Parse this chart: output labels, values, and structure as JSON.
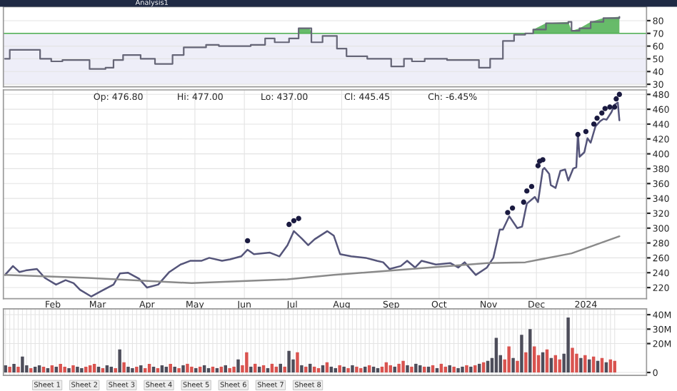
{
  "chart_data": [
    {
      "type": "step",
      "annotations": [
        "Analysis1"
      ],
      "xlim": [
        "2023-01-01",
        "2024-02-08"
      ],
      "ylim": [
        28,
        91
      ],
      "yticks": [
        30,
        40,
        50,
        60,
        70,
        80
      ],
      "grid": true,
      "tick_labels": "y",
      "bands": [
        {
          "axis": "y",
          "from": 30,
          "to": 70,
          "color": "#eeeef8"
        }
      ],
      "ref_lines": [
        {
          "axis": "y",
          "value": 70,
          "color": "#4caf50"
        }
      ],
      "series": [
        {
          "color": "#666677",
          "x": [
            "2023-01-02",
            "2023-01-05",
            "2023-01-16",
            "2023-01-24",
            "2023-01-31",
            "2023-02-07",
            "2023-02-18",
            "2023-02-24",
            "2023-03-06",
            "2023-03-11",
            "2023-03-17",
            "2023-03-28",
            "2023-04-06",
            "2023-04-15",
            "2023-04-17",
            "2023-04-24",
            "2023-05-08",
            "2023-05-16",
            "2023-06-05",
            "2023-06-14",
            "2023-06-20",
            "2023-06-29",
            "2023-07-05",
            "2023-07-08",
            "2023-07-12",
            "2023-07-13",
            "2023-07-20",
            "2023-07-26",
            "2023-07-29",
            "2023-08-04",
            "2023-08-17",
            "2023-09-01",
            "2023-09-09",
            "2023-09-14",
            "2023-09-22",
            "2023-10-06",
            "2023-10-26",
            "2023-11-02",
            "2023-11-10",
            "2023-11-17",
            "2023-11-24",
            "2023-11-29",
            "2023-12-07",
            "2023-12-21",
            "2023-12-23",
            "2023-12-28",
            "2024-01-04",
            "2024-01-12",
            "2024-01-22"
          ],
          "values": [
            50,
            57,
            57,
            50,
            48,
            49,
            49,
            42,
            43,
            49,
            53,
            50,
            46,
            46,
            53,
            59,
            61,
            60,
            61,
            66,
            63,
            66,
            74,
            74,
            74,
            63,
            68,
            68,
            58,
            52,
            50,
            44,
            50,
            48,
            50,
            49,
            43,
            50,
            64,
            69,
            70,
            73,
            78,
            79,
            72,
            74,
            79,
            82,
            83
          ],
          "lower": [
            null,
            null,
            null,
            null,
            null,
            null,
            null,
            null,
            null,
            null,
            null,
            null,
            null,
            null,
            null,
            null,
            null,
            null,
            null,
            null,
            null,
            null,
            70,
            70,
            70,
            70,
            null,
            null,
            null,
            null,
            null,
            null,
            null,
            null,
            null,
            null,
            null,
            null,
            null,
            null,
            null,
            70,
            70,
            70,
            70,
            70,
            70,
            70,
            70
          ],
          "upper": [
            null,
            null,
            null,
            null,
            null,
            null,
            null,
            null,
            null,
            null,
            null,
            null,
            null,
            null,
            null,
            null,
            null,
            null,
            null,
            null,
            null,
            null,
            74,
            74,
            74,
            70,
            null,
            null,
            null,
            null,
            null,
            null,
            null,
            null,
            null,
            null,
            null,
            null,
            null,
            null,
            null,
            73,
            78,
            79,
            72,
            74,
            79,
            82,
            83
          ]
        }
      ]
    },
    {
      "type": "line",
      "annotations": [
        "Op: 476.80",
        "Hi: 477.00",
        "Lo: 437.00",
        "Cl: 445.45",
        "Ch: -6.45%"
      ],
      "xlim": [
        "2023-01-01",
        "2024-02-08"
      ],
      "xticks": [
        {
          "value": "2023-02-01",
          "label": "Feb"
        },
        {
          "value": "2023-03-01",
          "label": "Mar"
        },
        {
          "value": "2023-04-01",
          "label": "Apr"
        },
        {
          "value": "2023-05-01",
          "label": "May"
        },
        {
          "value": "2023-06-01",
          "label": "Jun"
        },
        {
          "value": "2023-07-01",
          "label": "Jul"
        },
        {
          "value": "2023-08-01",
          "label": "Aug"
        },
        {
          "value": "2023-09-01",
          "label": "Sep"
        },
        {
          "value": "2023-10-01",
          "label": "Oct"
        },
        {
          "value": "2023-11-01",
          "label": "Nov"
        },
        {
          "value": "2023-12-01",
          "label": "Dec"
        },
        {
          "value": "2024-01-01",
          "label": "2024"
        }
      ],
      "ylim": [
        205,
        486
      ],
      "yticks": [
        220,
        240,
        260,
        280,
        300,
        320,
        340,
        360,
        380,
        400,
        420,
        440,
        460,
        480
      ],
      "grid": true,
      "series": [
        {
          "color": "#55557a",
          "x": [
            "2023-01-02",
            "2023-01-07",
            "2023-01-11",
            "2023-01-15",
            "2023-01-22",
            "2023-01-27",
            "2023-02-03",
            "2023-02-09",
            "2023-02-14",
            "2023-02-18",
            "2023-02-25",
            "2023-03-04",
            "2023-03-11",
            "2023-03-15",
            "2023-03-20",
            "2023-03-27",
            "2023-04-01",
            "2023-04-08",
            "2023-04-15",
            "2023-04-22",
            "2023-04-28",
            "2023-05-05",
            "2023-05-10",
            "2023-05-18",
            "2023-05-23",
            "2023-05-30",
            "2023-06-03",
            "2023-06-07",
            "2023-06-17",
            "2023-06-23",
            "2023-06-28",
            "2023-07-02",
            "2023-07-07",
            "2023-07-11",
            "2023-07-15",
            "2023-07-23",
            "2023-07-27",
            "2023-07-31",
            "2023-08-07",
            "2023-08-16",
            "2023-08-23",
            "2023-08-27",
            "2023-08-31",
            "2023-09-07",
            "2023-09-11",
            "2023-09-16",
            "2023-09-20",
            "2023-09-29",
            "2023-10-08",
            "2023-10-13",
            "2023-10-17",
            "2023-10-24",
            "2023-10-31",
            "2023-11-04",
            "2023-11-08",
            "2023-11-10",
            "2023-11-14",
            "2023-11-19",
            "2023-11-22",
            "2023-11-25",
            "2023-11-30",
            "2023-12-02",
            "2023-12-05",
            "2023-12-06",
            "2023-12-09",
            "2023-12-10",
            "2023-12-13",
            "2023-12-16",
            "2023-12-19",
            "2023-12-21",
            "2023-12-24",
            "2023-12-26",
            "2023-12-27",
            "2023-12-28",
            "2023-12-31",
            "2024-01-02",
            "2024-01-04",
            "2024-01-07",
            "2024-01-10",
            "2024-01-12",
            "2024-01-14",
            "2024-01-17",
            "2024-01-19",
            "2024-01-21",
            "2024-01-22"
          ],
          "values": [
            237,
            249,
            241,
            243,
            245,
            233,
            224,
            230,
            226,
            217,
            208,
            216,
            224,
            239,
            240,
            232,
            220,
            224,
            241,
            251,
            256,
            256,
            260,
            256,
            258,
            262,
            271,
            265,
            267,
            262,
            277,
            296,
            286,
            277,
            285,
            296,
            290,
            265,
            262,
            260,
            256,
            254,
            245,
            249,
            256,
            247,
            256,
            251,
            253,
            247,
            254,
            237,
            247,
            260,
            298,
            298,
            316,
            300,
            302,
            333,
            342,
            335,
            379,
            381,
            373,
            358,
            354,
            377,
            379,
            364,
            380,
            382,
            428,
            396,
            402,
            421,
            415,
            437,
            444,
            447,
            446,
            456,
            466,
            469,
            445
          ]
        },
        {
          "color": "#8a8a8a",
          "x": [
            "2023-01-02",
            "2023-02-23",
            "2023-04-29",
            "2023-06-28",
            "2023-07-27",
            "2023-09-25",
            "2023-10-31",
            "2023-11-24",
            "2023-12-23",
            "2024-01-22"
          ],
          "values": [
            237,
            233,
            226,
            231,
            237,
            247,
            253,
            254,
            266,
            289
          ]
        },
        {
          "type": "scatter",
          "marker": "circle",
          "color": "#1a1a40",
          "x": [
            "2023-06-03",
            "2023-06-29",
            "2023-07-02",
            "2023-07-05",
            "2023-11-13",
            "2023-11-16",
            "2023-11-23",
            "2023-11-25",
            "2023-11-28",
            "2023-12-02",
            "2023-12-03",
            "2023-12-05",
            "2023-12-27",
            "2024-01-01",
            "2024-01-06",
            "2024-01-08",
            "2024-01-11",
            "2024-01-13",
            "2024-01-16",
            "2024-01-19",
            "2024-01-20",
            "2024-01-22"
          ],
          "values": [
            283,
            305,
            310,
            313,
            321,
            327,
            335,
            350,
            356,
            384,
            390,
            392,
            426,
            430,
            440,
            448,
            455,
            461,
            463,
            463,
            474,
            480
          ]
        }
      ]
    },
    {
      "type": "bar",
      "annotations": [
        "Sheet 1",
        "Sheet 2",
        "Sheet 3",
        "Sheet 4",
        "Sheet 5",
        "Sheet 6",
        "Sheet 7",
        "Sheet 8"
      ],
      "ylim": [
        -2,
        44
      ],
      "yticks": [
        {
          "value": 0,
          "label": "0"
        },
        {
          "value": 20,
          "label": "20M"
        },
        {
          "value": 30,
          "label": "30M"
        },
        {
          "value": 40,
          "label": "40M"
        }
      ],
      "grid": true,
      "tick_labels": "y",
      "categories": [
        null,
        null,
        null,
        null,
        null,
        null,
        null,
        null,
        null,
        null,
        null,
        null,
        null,
        null,
        null,
        null,
        null,
        null,
        null,
        null,
        null,
        null,
        null,
        null,
        null,
        null,
        null,
        null,
        null,
        null,
        null,
        null,
        null,
        null,
        null,
        null,
        null,
        null,
        null,
        null,
        null,
        null,
        null,
        null,
        null,
        null,
        null,
        null,
        null,
        null,
        null,
        null,
        null,
        null,
        null,
        null,
        null,
        null,
        null,
        null,
        null,
        null,
        null,
        null,
        null,
        null,
        null,
        null,
        null,
        null,
        null,
        null,
        null,
        null,
        null,
        null,
        null,
        null,
        null,
        null,
        null,
        null,
        null,
        null,
        null,
        null,
        null,
        null,
        null,
        null,
        null,
        null,
        null,
        null,
        null,
        null,
        null,
        null,
        null,
        null,
        null,
        null,
        null,
        null,
        null,
        null,
        null,
        null,
        null,
        null,
        null,
        null,
        null,
        null,
        null,
        null,
        null,
        null,
        null,
        null,
        null,
        null,
        null,
        null,
        null,
        null,
        null,
        null,
        null,
        null,
        null,
        null,
        null,
        null,
        null,
        null,
        null,
        null,
        null,
        null,
        null,
        null,
        null,
        null,
        null
      ],
      "values": [
        5,
        4,
        6,
        4,
        11,
        5,
        3,
        4,
        5,
        4,
        3,
        5,
        4,
        6,
        4,
        3,
        5,
        4,
        3,
        4,
        5,
        6,
        4,
        3,
        5,
        4,
        3,
        16,
        7,
        4,
        3,
        4,
        5,
        3,
        6,
        4,
        3,
        5,
        4,
        6,
        4,
        3,
        5,
        6,
        4,
        3,
        4,
        5,
        3,
        4,
        3,
        4,
        5,
        3,
        4,
        9,
        5,
        14,
        4,
        6,
        4,
        5,
        3,
        6,
        4,
        6,
        4,
        15,
        9,
        14,
        5,
        4,
        6,
        4,
        3,
        5,
        7,
        4,
        3,
        5,
        4,
        3,
        5,
        4,
        3,
        4,
        5,
        4,
        3,
        4,
        7,
        5,
        4,
        6,
        8,
        5,
        4,
        6,
        5,
        4,
        4,
        5,
        3,
        6,
        4,
        5,
        4,
        3,
        4,
        5,
        4,
        5,
        6,
        7,
        8,
        10,
        24,
        12,
        9,
        18,
        10,
        8,
        26,
        14,
        30,
        18,
        12,
        14,
        16,
        10,
        12,
        9,
        13,
        38,
        17,
        13,
        10,
        12,
        9,
        11,
        8,
        10,
        7,
        9,
        8
      ],
      "colors": [
        "#4d4d5a",
        "#d9534f",
        "#4d4d5a",
        "#d9534f",
        "#4d4d5a",
        "#4d4d5a",
        "#d9534f",
        "#4d4d5a",
        "#4d4d5a",
        "#d9534f",
        "#4d4d5a",
        "#d9534f",
        "#4d4d5a",
        "#d9534f",
        "#d9534f",
        "#4d4d5a",
        "#d9534f",
        "#4d4d5a",
        "#4d4d5a",
        "#d9534f",
        "#d9534f",
        "#d9534f",
        "#4d4d5a",
        "#d9534f",
        "#4d4d5a",
        "#4d4d5a",
        "#d9534f",
        "#4d4d5a",
        "#d9534f",
        "#4d4d5a",
        "#4d4d5a",
        "#d9534f",
        "#4d4d5a",
        "#d9534f",
        "#d9534f",
        "#4d4d5a",
        "#d9534f",
        "#4d4d5a",
        "#4d4d5a",
        "#d9534f",
        "#4d4d5a",
        "#d9534f",
        "#4d4d5a",
        "#d9534f",
        "#d9534f",
        "#4d4d5a",
        "#d9534f",
        "#4d4d5a",
        "#4d4d5a",
        "#d9534f",
        "#4d4d5a",
        "#d9534f",
        "#4d4d5a",
        "#d9534f",
        "#d9534f",
        "#4d4d5a",
        "#d9534f",
        "#d9534f",
        "#4d4d5a",
        "#d9534f",
        "#4d4d5a",
        "#d9534f",
        "#4d4d5a",
        "#d9534f",
        "#d9534f",
        "#4d4d5a",
        "#d9534f",
        "#4d4d5a",
        "#4d4d5a",
        "#d9534f",
        "#4d4d5a",
        "#d9534f",
        "#4d4d5a",
        "#d9534f",
        "#d9534f",
        "#4d4d5a",
        "#d9534f",
        "#4d4d5a",
        "#4d4d5a",
        "#d9534f",
        "#4d4d5a",
        "#d9534f",
        "#4d4d5a",
        "#d9534f",
        "#d9534f",
        "#4d4d5a",
        "#d9534f",
        "#4d4d5a",
        "#4d4d5a",
        "#d9534f",
        "#d9534f",
        "#d9534f",
        "#4d4d5a",
        "#d9534f",
        "#d9534f",
        "#4d4d5a",
        "#d9534f",
        "#4d4d5a",
        "#4d4d5a",
        "#d9534f",
        "#4d4d5a",
        "#d9534f",
        "#4d4d5a",
        "#d9534f",
        "#d9534f",
        "#4d4d5a",
        "#d9534f",
        "#4d4d5a",
        "#4d4d5a",
        "#d9534f",
        "#4d4d5a",
        "#d9534f",
        "#4d4d5a",
        "#d9534f",
        "#4d4d5a",
        "#4d4d5a",
        "#4d4d5a",
        "#4d4d5a",
        "#d9534f",
        "#d9534f",
        "#4d4d5a",
        "#d9534f",
        "#4d4d5a",
        "#d9534f",
        "#4d4d5a",
        "#d9534f",
        "#d9534f",
        "#4d4d5a",
        "#d9534f",
        "#4d4d5a",
        "#d9534f",
        "#d9534f",
        "#4d4d5a",
        "#4d4d5a",
        "#d9534f",
        "#d9534f",
        "#4d4d5a",
        "#d9534f",
        "#4d4d5a",
        "#d9534f",
        "#4d4d5a",
        "#d9534f",
        "#4d4d5a",
        "#d9534f",
        "#d9534f"
      ]
    }
  ]
}
